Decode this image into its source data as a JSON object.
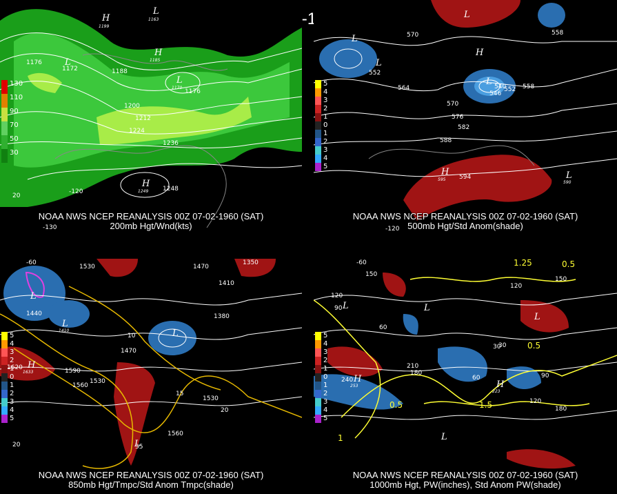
{
  "title": "00Z 07-02-1960 (SAT)",
  "panels": [
    {
      "caption1": "NOAA NWS NCEP REANALYSIS 00Z 07-02-1960 (SAT)",
      "caption2": "200mb Hgt/Wnd(kts)",
      "legend": [
        "130",
        "110",
        "90",
        "70",
        "50",
        "30"
      ],
      "contour_labels": [
        "1176",
        "1172",
        "1188",
        "1200",
        "1212",
        "1224",
        "1236",
        "1248",
        "1176",
        "1170"
      ],
      "hl_markers": [
        {
          "t": "H",
          "v": "1199"
        },
        {
          "t": "L",
          "v": "1163"
        },
        {
          "t": "H",
          "v": "1185"
        },
        {
          "t": "L",
          "v": "1172"
        },
        {
          "t": "L",
          "v": "1170"
        },
        {
          "t": "H",
          "v": "1249"
        }
      ],
      "lon_labels": [
        "-130",
        "-120"
      ],
      "lat_labels": [
        "20"
      ]
    },
    {
      "caption1": "NOAA NWS NCEP REANALYSIS 00Z 07-02-1960 (SAT)",
      "caption2": "500mb Hgt/Std Anom(shade)",
      "legend": [
        "5",
        "4",
        "3",
        "2",
        "1",
        "0",
        "1",
        "2",
        "3",
        "4",
        "5"
      ],
      "contour_labels": [
        "570",
        "558",
        "552",
        "564",
        "570",
        "576",
        "582",
        "588",
        "594",
        "558",
        "546",
        "540",
        "552",
        "548"
      ],
      "hl_markers": [
        {
          "t": "L",
          "v": "549"
        },
        {
          "t": "L",
          "v": "547"
        },
        {
          "t": "L",
          "v": "536"
        },
        {
          "t": "L",
          "v": "556"
        },
        {
          "t": "H",
          "v": "570"
        },
        {
          "t": "H",
          "v": "595"
        },
        {
          "t": "L",
          "v": "590"
        }
      ],
      "lon_labels": [
        "-130",
        "-120"
      ],
      "lat_labels": [
        "20"
      ]
    },
    {
      "caption1": "NOAA NWS NCEP REANALYSIS 00Z 07-02-1960 (SAT)",
      "caption2": "850mb Hgt/Tmpc/Std Anom Tmpc(shade)",
      "legend": [
        "5",
        "4",
        "3",
        "2",
        "1",
        "0",
        "1",
        "2",
        "3",
        "4",
        "5"
      ],
      "contour_labels": [
        "1530",
        "1470",
        "1440",
        "1410",
        "1380",
        "1350",
        "1590",
        "1560",
        "1530",
        "1620",
        "1470",
        "10",
        "15",
        "20",
        "25",
        "30",
        "35",
        "1560",
        "1530",
        "1440",
        "1410",
        "1350",
        "1380"
      ],
      "hl_markers": [
        {
          "t": "L",
          "v": "1410"
        },
        {
          "t": "L",
          "v": "1410"
        },
        {
          "t": "H",
          "v": "1633"
        },
        {
          "t": "L",
          "v": "1485"
        },
        {
          "t": "L",
          "v": "1350"
        },
        {
          "t": "H",
          "v": "1329"
        }
      ],
      "lon_labels": [
        "-60"
      ],
      "lat_labels": [
        "20"
      ]
    },
    {
      "caption1": "NOAA NWS NCEP REANALYSIS 00Z 07-02-1960 (SAT)",
      "caption2": "1000mb Hgt, PW(inches), Std Anom PW(shade)",
      "legend": [
        "5",
        "4",
        "3",
        "2",
        "1",
        "0",
        "1",
        "2",
        "3",
        "4",
        "5"
      ],
      "contour_labels": [
        "150",
        "120",
        "90",
        "60",
        "30",
        "210",
        "180",
        "240",
        "120",
        "150",
        "0.5",
        "1",
        "1.5",
        "0.5",
        "1.25",
        "0.5",
        "180",
        "120",
        "90",
        "60",
        "30"
      ],
      "hl_markers": [
        {
          "t": "L",
          "v": "60"
        },
        {
          "t": "H",
          "v": "253"
        },
        {
          "t": "L",
          "v": "85"
        },
        {
          "t": "H",
          "v": "223"
        },
        {
          "t": "L",
          "v": "60"
        },
        {
          "t": "L",
          "v": "90"
        }
      ],
      "lon_labels": [
        "-60"
      ],
      "lat_labels": [
        "20"
      ]
    }
  ],
  "colors": {
    "jet_dark": "#1a9e1a",
    "jet_mid": "#3cc83c",
    "jet_light": "#a8ec48",
    "anom_pos": "#a01414",
    "anom_neg": "#2a6eb0",
    "contour": "#ffffff",
    "temp": "#ffcc00",
    "pw": "#ffff33",
    "cyan": "#44e0e0",
    "magenta": "#e040e0"
  },
  "legend_colors_speed": [
    "#e00000",
    "#e08000",
    "#c8e040",
    "#60d060",
    "#30b030",
    "#108010"
  ],
  "legend_colors_anom": [
    "#ffff00",
    "#ff9900",
    "#ff5555",
    "#cc2222",
    "#881111",
    "#222222",
    "#225588",
    "#3366cc",
    "#44cccc",
    "#33aaff",
    "#aa22cc"
  ]
}
